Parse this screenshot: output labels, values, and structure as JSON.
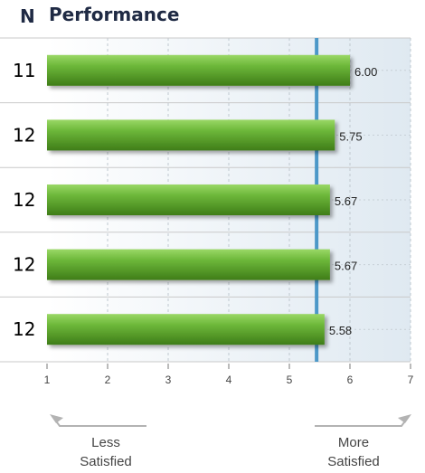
{
  "header": {
    "n_label": "N",
    "title": "Performance"
  },
  "colors": {
    "bar": "#5aa324",
    "bar_light": "#8fd35a",
    "bar_dark": "#3f7d18",
    "reference_line": "#4c98c8",
    "panel_bg": "#e9f0f5"
  },
  "chart_data": {
    "type": "bar",
    "orientation": "horizontal",
    "title": "Performance",
    "n_values": [
      11,
      12,
      12,
      12,
      12
    ],
    "values": [
      6.0,
      5.75,
      5.67,
      5.67,
      5.58
    ],
    "value_labels": [
      "6.00",
      "5.75",
      "5.67",
      "5.67",
      "5.58"
    ],
    "x_ticks": [
      1,
      2,
      3,
      4,
      5,
      6,
      7
    ],
    "xlim": [
      1,
      7
    ],
    "reference_value": 5.45,
    "grid": true,
    "scale_left_label": [
      "Less",
      "Satisfied"
    ],
    "scale_right_label": [
      "More",
      "Satisfied"
    ]
  }
}
